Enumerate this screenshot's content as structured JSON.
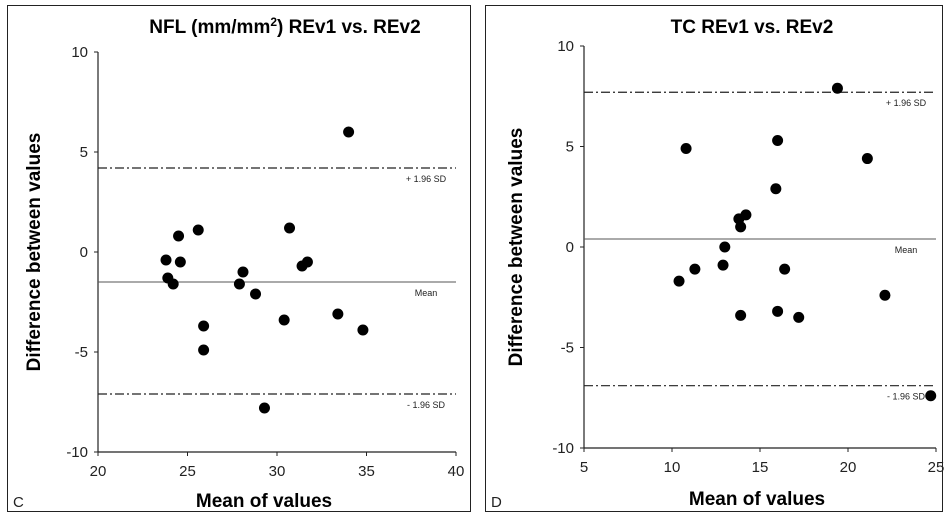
{
  "chart_data": [
    {
      "type": "scatter",
      "panel_label": "C",
      "title": "NFL (mm/mm",
      "title_sup": "2",
      "title_rest": ") REv1 vs. REv2",
      "xlabel": "Mean of values",
      "ylabel": "Difference between values",
      "xlim": [
        20,
        40
      ],
      "ylim": [
        -10,
        10
      ],
      "xticks": [
        "20",
        "25",
        "30",
        "35",
        "40"
      ],
      "yticks": [
        "10",
        "5",
        "0",
        "-5",
        "-10"
      ],
      "xtick_values": [
        20,
        25,
        30,
        35,
        40
      ],
      "ytick_values": [
        10,
        5,
        0,
        -5,
        -10
      ],
      "mean": -1.5,
      "upper_limit": 4.2,
      "lower_limit": -7.1,
      "mean_label": "Mean",
      "upper_label": "+ 1.96 SD",
      "lower_label": "- 1.96 SD",
      "grid": false,
      "points": [
        {
          "x": 23.8,
          "y": -0.4
        },
        {
          "x": 23.9,
          "y": -1.3
        },
        {
          "x": 24.2,
          "y": -1.6
        },
        {
          "x": 24.5,
          "y": 0.8
        },
        {
          "x": 24.6,
          "y": -0.5
        },
        {
          "x": 25.6,
          "y": 1.1
        },
        {
          "x": 25.9,
          "y": -3.7
        },
        {
          "x": 25.9,
          "y": -4.9
        },
        {
          "x": 27.9,
          "y": -1.6
        },
        {
          "x": 28.1,
          "y": -1.0
        },
        {
          "x": 28.8,
          "y": -2.1
        },
        {
          "x": 29.3,
          "y": -7.8
        },
        {
          "x": 30.4,
          "y": -3.4
        },
        {
          "x": 30.7,
          "y": 1.2
        },
        {
          "x": 31.4,
          "y": -0.7
        },
        {
          "x": 31.7,
          "y": -0.5
        },
        {
          "x": 33.4,
          "y": -3.1
        },
        {
          "x": 34.0,
          "y": 6.0
        },
        {
          "x": 34.8,
          "y": -3.9
        }
      ]
    },
    {
      "type": "scatter",
      "panel_label": "D",
      "title": "TC REv1 vs. REv2",
      "title_sup": "",
      "title_rest": "",
      "xlabel": "Mean of values",
      "ylabel": "Difference between values",
      "xlim": [
        5,
        25
      ],
      "ylim": [
        -10,
        10
      ],
      "xticks": [
        "5",
        "10",
        "15",
        "20",
        "25"
      ],
      "yticks": [
        "10",
        "5",
        "0",
        "-5",
        "-10"
      ],
      "xtick_values": [
        5,
        10,
        15,
        20,
        25
      ],
      "ytick_values": [
        10,
        5,
        0,
        -5,
        -10
      ],
      "mean": 0.4,
      "upper_limit": 7.7,
      "lower_limit": -6.9,
      "mean_label": "Mean",
      "upper_label": "+ 1.96 SD",
      "lower_label": "- 1.96 SD",
      "grid": false,
      "points": [
        {
          "x": 10.4,
          "y": -1.7
        },
        {
          "x": 10.8,
          "y": 4.9
        },
        {
          "x": 11.3,
          "y": -1.1
        },
        {
          "x": 12.9,
          "y": -0.9
        },
        {
          "x": 13.0,
          "y": 0.0
        },
        {
          "x": 13.8,
          "y": 1.4
        },
        {
          "x": 13.9,
          "y": 1.0
        },
        {
          "x": 13.9,
          "y": -3.4
        },
        {
          "x": 14.2,
          "y": 1.6
        },
        {
          "x": 15.9,
          "y": 2.9
        },
        {
          "x": 16.0,
          "y": 5.3
        },
        {
          "x": 16.0,
          "y": -3.2
        },
        {
          "x": 16.4,
          "y": -1.1
        },
        {
          "x": 17.2,
          "y": -3.5
        },
        {
          "x": 19.4,
          "y": 7.9
        },
        {
          "x": 21.1,
          "y": 4.4
        },
        {
          "x": 22.1,
          "y": -2.4
        },
        {
          "x": 24.7,
          "y": -7.4
        }
      ]
    }
  ]
}
